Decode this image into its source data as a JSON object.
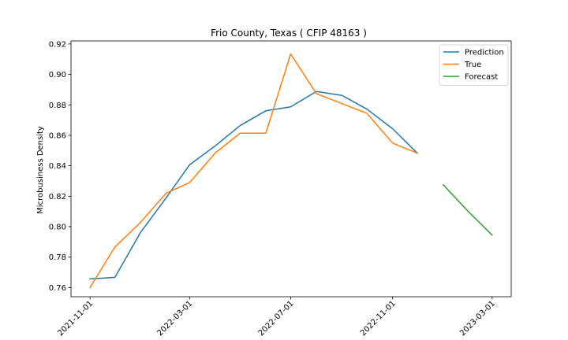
{
  "chart_data": {
    "type": "line",
    "title": "Frio County, Texas ( CFIP 48163 )",
    "xlabel": "",
    "ylabel": "Microbusiness Density",
    "ylim": [
      0.754,
      0.922
    ],
    "xlim": [
      "2021-10-09",
      "2023-03-24"
    ],
    "x_ticks": [
      "2021-11-01",
      "2022-03-01",
      "2022-07-01",
      "2022-11-01",
      "2023-03-01"
    ],
    "y_ticks": [
      0.76,
      0.78,
      0.8,
      0.82,
      0.84,
      0.86,
      0.88,
      0.9,
      0.92
    ],
    "y_tick_labels": [
      "0.76",
      "0.78",
      "0.80",
      "0.82",
      "0.84",
      "0.86",
      "0.88",
      "0.90",
      "0.92"
    ],
    "grid": false,
    "legend_position": "top-right",
    "series": [
      {
        "name": "Prediction",
        "color": "#1f77b4",
        "x": [
          "2021-11-01",
          "2021-12-01",
          "2022-01-01",
          "2022-02-01",
          "2022-03-01",
          "2022-04-01",
          "2022-05-01",
          "2022-06-01",
          "2022-07-01",
          "2022-08-01",
          "2022-09-01",
          "2022-10-01",
          "2022-11-01",
          "2022-12-01"
        ],
        "values": [
          0.7657,
          0.7667,
          0.7963,
          0.8191,
          0.8406,
          0.8531,
          0.8664,
          0.8761,
          0.8787,
          0.8888,
          0.8862,
          0.8772,
          0.8643,
          0.8482
        ]
      },
      {
        "name": "True",
        "color": "#ff7f0e",
        "x": [
          "2021-11-01",
          "2021-12-01",
          "2022-01-01",
          "2022-02-01",
          "2022-03-01",
          "2022-04-01",
          "2022-05-01",
          "2022-06-01",
          "2022-07-01",
          "2022-08-01",
          "2022-09-01",
          "2022-10-01",
          "2022-11-01",
          "2022-12-01"
        ],
        "values": [
          0.7601,
          0.7866,
          0.8029,
          0.8221,
          0.8289,
          0.8484,
          0.8614,
          0.8614,
          0.9134,
          0.8874,
          0.8808,
          0.8744,
          0.8549,
          0.8482
        ]
      },
      {
        "name": "Forecast",
        "color": "#2ca02c",
        "x": [
          "2023-01-01",
          "2023-02-01",
          "2023-03-01"
        ],
        "values": [
          0.8275,
          0.8095,
          0.7945
        ]
      }
    ]
  }
}
